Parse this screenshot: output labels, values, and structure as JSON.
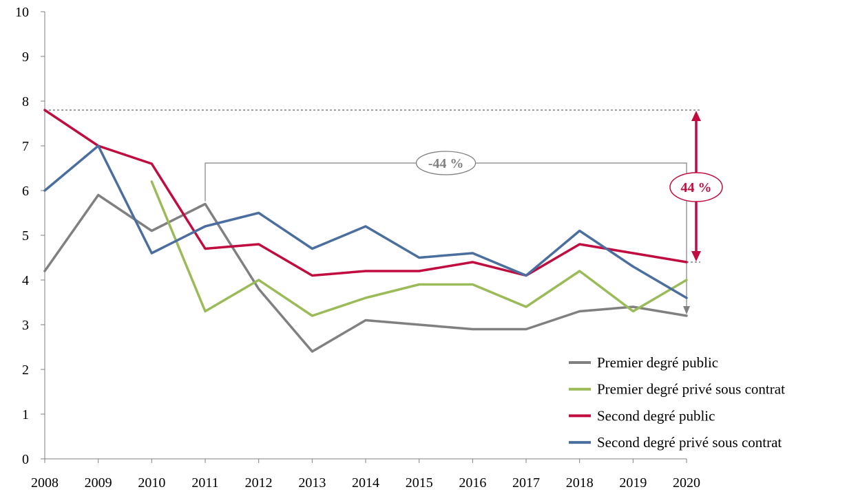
{
  "chart_data": {
    "type": "line",
    "title": "",
    "xlabel": "",
    "ylabel": "",
    "x": [
      "2008",
      "2009",
      "2010",
      "2011",
      "2012",
      "2013",
      "2014",
      "2015",
      "2016",
      "2017",
      "2018",
      "2019",
      "2020"
    ],
    "ylim": [
      0,
      10
    ],
    "yticks": [
      "0",
      "1",
      "2",
      "3",
      "4",
      "5",
      "6",
      "7",
      "8",
      "9",
      "10"
    ],
    "grid": false,
    "legend_position": "bottom-right",
    "series": [
      {
        "name": "Premier degré public",
        "color": "#808080",
        "values": [
          4.2,
          5.9,
          5.1,
          5.7,
          3.8,
          2.4,
          3.1,
          3.0,
          2.9,
          2.9,
          3.3,
          3.4,
          3.2
        ]
      },
      {
        "name": "Premier degré privé sous contrat",
        "color": "#9BBB59",
        "values": [
          null,
          null,
          6.2,
          3.3,
          4.0,
          3.2,
          3.6,
          3.9,
          3.9,
          3.4,
          4.2,
          3.3,
          4.0
        ]
      },
      {
        "name": "Second degré public",
        "color": "#C00C3F",
        "values": [
          7.8,
          7.0,
          6.6,
          4.7,
          4.8,
          4.1,
          4.2,
          4.2,
          4.4,
          4.1,
          4.8,
          4.6,
          4.4
        ]
      },
      {
        "name": "Second degré privé sous contrat",
        "color": "#4A6E9E",
        "values": [
          6.0,
          7.0,
          4.6,
          5.2,
          5.5,
          4.7,
          5.2,
          4.5,
          4.6,
          4.1,
          5.1,
          4.3,
          3.6
        ]
      }
    ],
    "annotations": [
      {
        "label": "-44 %",
        "color": "#808080",
        "from_x": "2011",
        "from_y": 5.7,
        "to_x": "2020",
        "to_y": 3.2
      },
      {
        "label": "44 %",
        "color": "#C00C3F",
        "from_x": "2008",
        "from_y": 7.8,
        "to_x": "2020",
        "to_y": 4.4
      }
    ]
  }
}
